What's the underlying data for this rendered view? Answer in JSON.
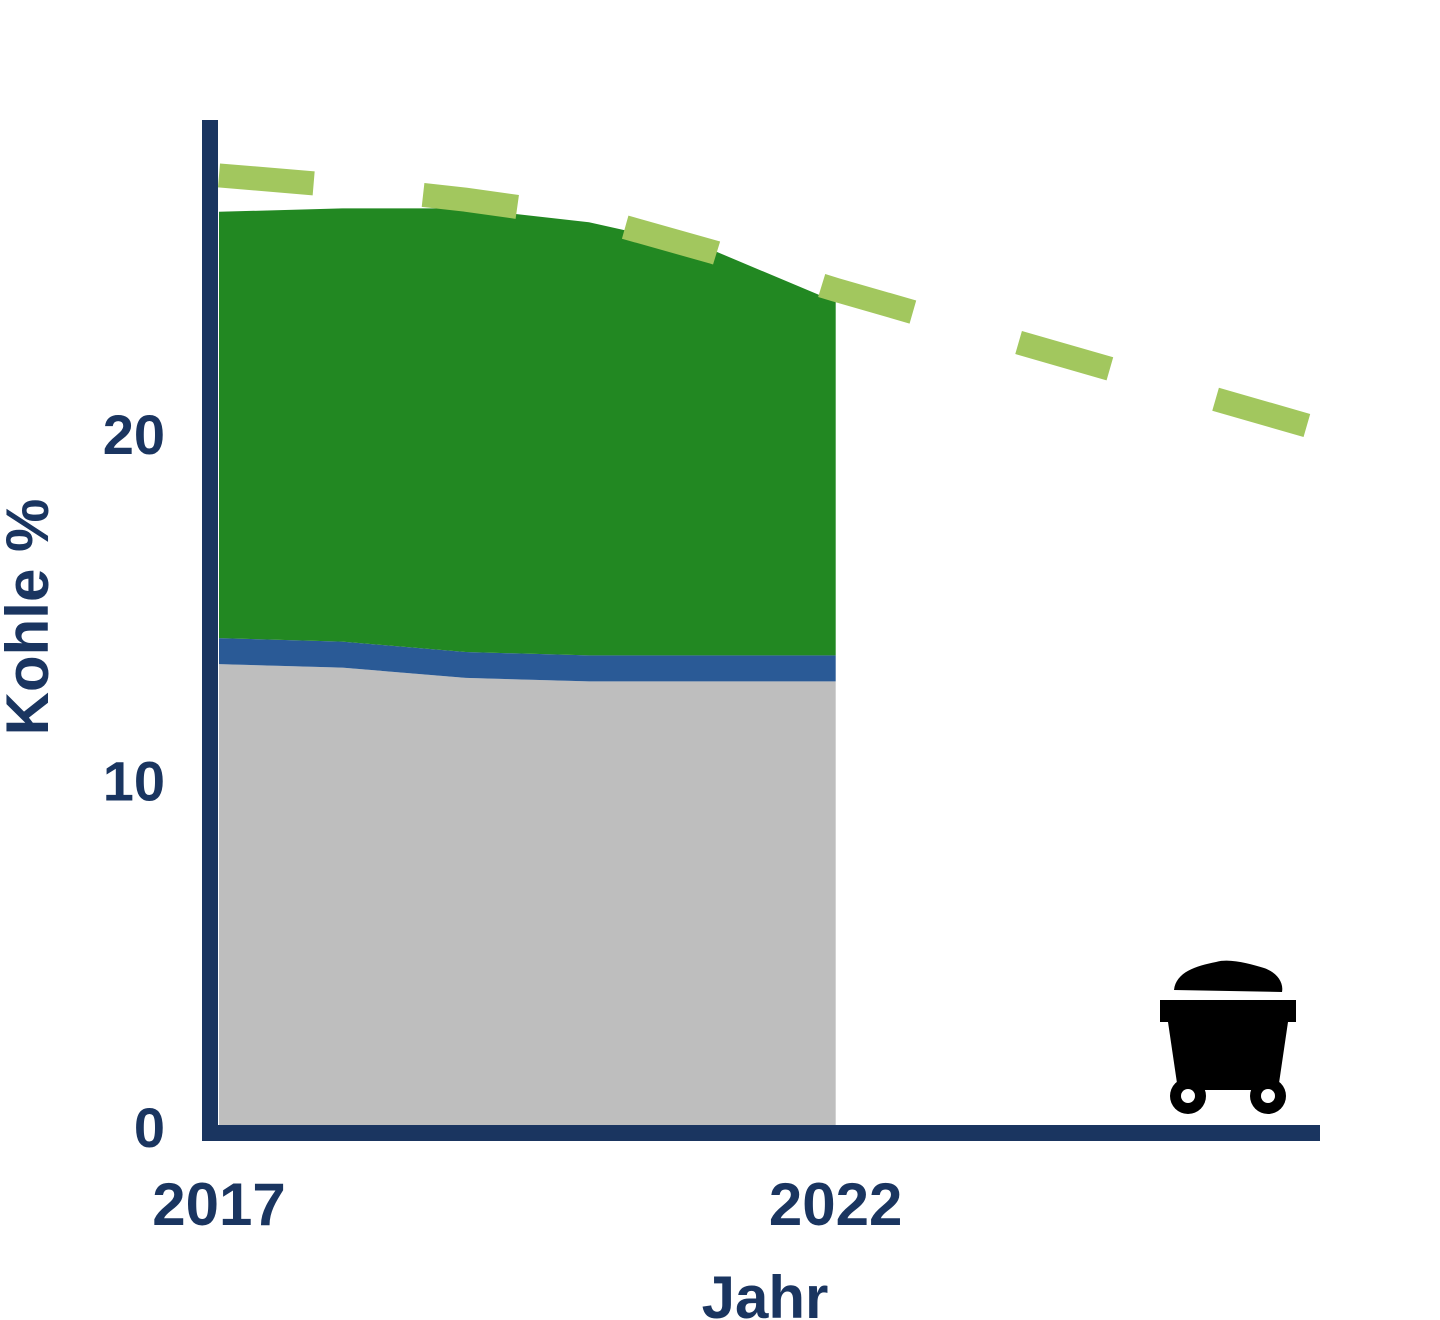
{
  "colors": {
    "axis": "#1a3560",
    "gray_area": "#bebebe",
    "blue_band": "#2a5a96",
    "green_area": "#228822",
    "target_line": "#a2c75e",
    "cart": "#000000"
  },
  "icon": "coal-cart-icon",
  "chart_data": {
    "type": "area",
    "xlabel": "Jahr",
    "ylabel": "Kohle %",
    "x_ticks": [
      {
        "value": 2017,
        "label": "2017"
      },
      {
        "value": 2022,
        "label": "2022"
      }
    ],
    "y_ticks": [
      {
        "value": 0,
        "label": "0"
      },
      {
        "value": 10,
        "label": "10"
      },
      {
        "value": 20,
        "label": "20"
      }
    ],
    "xlim": [
      2017,
      2026
    ],
    "ylim": [
      0,
      29
    ],
    "x": [
      2017,
      2018,
      2019,
      2020,
      2021,
      2022
    ],
    "series": [
      {
        "key": "gray",
        "values": [
          13.3,
          13.2,
          12.9,
          12.8,
          12.8,
          12.8
        ]
      },
      {
        "key": "blue",
        "values": [
          0.75,
          0.75,
          0.75,
          0.75,
          0.75,
          0.75
        ]
      },
      {
        "key": "green",
        "values": [
          12.3,
          12.5,
          12.8,
          12.5,
          11.7,
          10.2
        ]
      }
    ],
    "target_line": {
      "x": [
        2017,
        2018,
        2019,
        2020,
        2021,
        2022,
        2026
      ],
      "values": [
        27.4,
        27.1,
        26.7,
        26.2,
        25.2,
        24.1,
        20.0
      ]
    }
  }
}
